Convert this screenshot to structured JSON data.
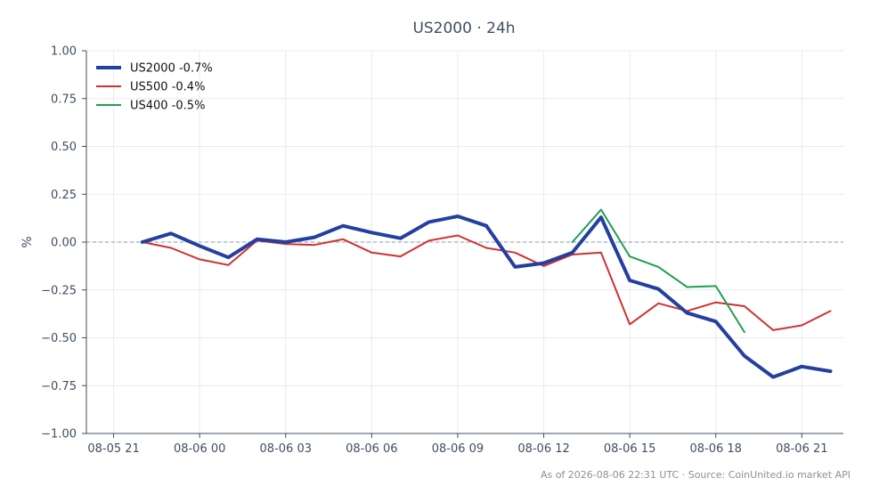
{
  "chart_data": {
    "type": "line",
    "title": "US2000 · 24h",
    "xlabel": "",
    "ylabel": "%",
    "x_hours": [
      0,
      1,
      2,
      3,
      4,
      5,
      6,
      7,
      8,
      9,
      10,
      11,
      12,
      13,
      14,
      15,
      16,
      17,
      18,
      19,
      20,
      21,
      22,
      23,
      24
    ],
    "x_ticks": [
      {
        "hour": -1,
        "label": "08-05 21"
      },
      {
        "hour": 2,
        "label": "08-06 00"
      },
      {
        "hour": 5,
        "label": "08-06 03"
      },
      {
        "hour": 8,
        "label": "08-06 06"
      },
      {
        "hour": 11,
        "label": "08-06 09"
      },
      {
        "hour": 14,
        "label": "08-06 12"
      },
      {
        "hour": 17,
        "label": "08-06 15"
      },
      {
        "hour": 20,
        "label": "08-06 18"
      },
      {
        "hour": 23,
        "label": "08-06 21"
      }
    ],
    "xlim": [
      -1.95,
      24.45
    ],
    "ylim": [
      -1.0,
      1.0
    ],
    "y_ticks": [
      "1.00",
      "0.75",
      "0.50",
      "0.25",
      "0.00",
      "−0.25",
      "−0.50",
      "−0.75",
      "−1.00"
    ],
    "grid": true,
    "zero_line": true,
    "legend_position": "top-left",
    "series": [
      {
        "name": "US2000 -0.7%",
        "color": "#2340a0",
        "width": 4,
        "x": [
          0,
          1,
          2,
          3,
          4,
          5,
          6,
          7,
          8,
          9,
          10,
          11,
          12,
          13,
          14,
          15,
          16,
          17,
          18,
          19,
          20,
          21,
          22,
          23,
          24
        ],
        "values": [
          0.0,
          0.045,
          -0.02,
          -0.08,
          0.015,
          0.0,
          0.025,
          0.085,
          0.05,
          0.02,
          0.105,
          0.135,
          0.085,
          -0.13,
          -0.11,
          -0.055,
          0.13,
          -0.2,
          -0.245,
          -0.37,
          -0.415,
          -0.595,
          -0.705,
          -0.65,
          -0.675
        ]
      },
      {
        "name": "US500 -0.4%",
        "color": "#d03030",
        "width": 2,
        "x": [
          0,
          1,
          2,
          3,
          4,
          5,
          6,
          7,
          8,
          9,
          10,
          11,
          12,
          13,
          14,
          15,
          16,
          17,
          18,
          19,
          20,
          21,
          22,
          23,
          24
        ],
        "values": [
          0.0,
          -0.03,
          -0.09,
          -0.12,
          0.008,
          -0.01,
          -0.015,
          0.015,
          -0.055,
          -0.075,
          0.008,
          0.035,
          -0.03,
          -0.055,
          -0.125,
          -0.065,
          -0.055,
          -0.43,
          -0.32,
          -0.36,
          -0.315,
          -0.335,
          -0.46,
          -0.435,
          -0.36
        ]
      },
      {
        "name": "US400 -0.5%",
        "color": "#1f9e50",
        "width": 2,
        "x": [
          15,
          16,
          17,
          18,
          19,
          20,
          21
        ],
        "values": [
          0.0,
          0.17,
          -0.075,
          -0.13,
          -0.235,
          -0.23,
          -0.47
        ]
      }
    ],
    "footer": "As of 2026-08-06 22:31 UTC · Source: CoinUnited.io market API"
  }
}
